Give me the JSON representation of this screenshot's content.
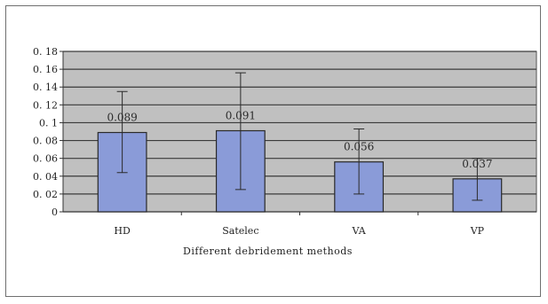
{
  "chart_data": {
    "type": "bar",
    "title": "",
    "xlabel": "Different debridement methods",
    "ylabel": "",
    "categories": [
      "HD",
      "Satelec",
      "VA",
      "VP"
    ],
    "values": [
      0.089,
      0.091,
      0.056,
      0.037
    ],
    "value_labels": [
      "0.089",
      "0.091",
      "0.056",
      "0.037"
    ],
    "error_low": [
      0.044,
      0.025,
      0.02,
      0.013
    ],
    "error_high": [
      0.135,
      0.156,
      0.093,
      0.06
    ],
    "ylim": [
      0,
      0.18
    ],
    "y_ticks": [
      0,
      0.02,
      0.04,
      0.06,
      0.08,
      0.1,
      0.12,
      0.14,
      0.16,
      0.18
    ],
    "y_tick_labels": [
      "0",
      "0. 02",
      "0. 04",
      "0. 06",
      "0. 08",
      "0. 1",
      "0. 12",
      "0. 14",
      "0. 16",
      "0. 18"
    ],
    "grid": true,
    "legend": "none",
    "colors": {
      "plot_background": "#c0c0c0",
      "bar_fill": "#8a9bd8",
      "bar_stroke": "#2a2a2a",
      "gridline": "#3a3a3a",
      "error_bar": "#2a2a2a"
    }
  }
}
